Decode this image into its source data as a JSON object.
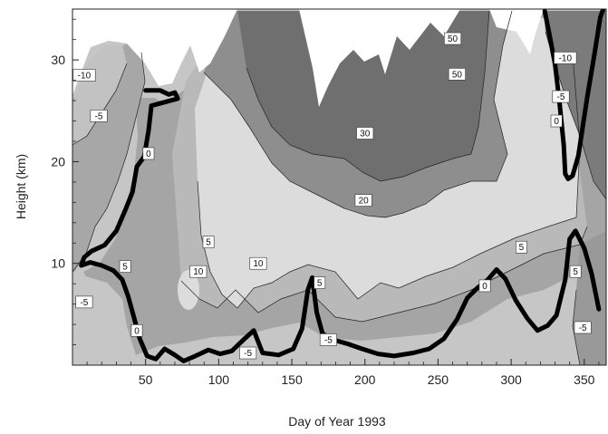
{
  "chart_data": {
    "type": "contour",
    "title": "",
    "xlabel": "Day of Year 1993",
    "ylabel": "Height (km)",
    "xlim": [
      0,
      365
    ],
    "ylim": [
      0,
      35
    ],
    "xticks": [
      50,
      100,
      150,
      200,
      250,
      300,
      350
    ],
    "yticks": [
      10,
      20,
      30
    ],
    "levels": [
      -10,
      -5,
      0,
      5,
      10,
      20,
      30,
      50
    ],
    "fill_colors": {
      "below_-10": "#c2c2c2",
      "-10_to_-5": "#a7a7a7",
      "-5_to_0": "#c6c6c6",
      "0_to_5": "#a5a5a5",
      "5_to_10": "#b9b9b9",
      "10_to_20": "#dcdcdc",
      "20_to_30": "#8e8e8e",
      "above_30": "#6f6f6f"
    },
    "contour_labels": [
      {
        "text": "-10",
        "day": 8,
        "km": 28.5
      },
      {
        "text": "-5",
        "day": 18,
        "km": 24.5
      },
      {
        "text": "0",
        "day": 52,
        "km": 20.8
      },
      {
        "text": "-5",
        "day": 8,
        "km": 6.2
      },
      {
        "text": "5",
        "day": 36,
        "km": 9.7
      },
      {
        "text": "0",
        "day": 44,
        "km": 3.4
      },
      {
        "text": "5",
        "day": 93,
        "km": 12.1
      },
      {
        "text": "10",
        "day": 86,
        "km": 9.2
      },
      {
        "text": "10",
        "day": 127,
        "km": 10.0
      },
      {
        "text": "-5",
        "day": 120,
        "km": 1.2
      },
      {
        "text": "5",
        "day": 169,
        "km": 8.1
      },
      {
        "text": "-5",
        "day": 175,
        "km": 2.5
      },
      {
        "text": "30",
        "day": 200,
        "km": 22.8
      },
      {
        "text": "20",
        "day": 199,
        "km": 16.2
      },
      {
        "text": "50",
        "day": 260,
        "km": 32.1
      },
      {
        "text": "50",
        "day": 263,
        "km": 28.6
      },
      {
        "text": "0",
        "day": 282,
        "km": 7.8
      },
      {
        "text": "5",
        "day": 307,
        "km": 11.6
      },
      {
        "text": "-10",
        "day": 337,
        "km": 30.2
      },
      {
        "text": "-5",
        "day": 334,
        "km": 26.4
      },
      {
        "text": "0",
        "day": 331,
        "km": 24.0
      },
      {
        "text": "5",
        "day": 344,
        "km": 9.2
      },
      {
        "text": "-5",
        "day": 349,
        "km": 3.7
      }
    ],
    "zero_contour": [
      [
        50,
        27
      ],
      [
        60,
        27
      ],
      [
        66,
        26.6
      ],
      [
        70,
        26.8
      ],
      [
        72,
        26.2
      ],
      [
        54,
        25.5
      ],
      [
        52,
        23
      ],
      [
        49,
        20.5
      ],
      [
        44,
        19.5
      ],
      [
        41,
        17
      ],
      [
        36,
        15.2
      ],
      [
        30,
        13.2
      ],
      [
        22,
        11.8
      ],
      [
        13,
        11.2
      ],
      [
        8,
        10.6
      ],
      [
        6,
        9.8
      ],
      [
        12,
        10.1
      ],
      [
        20,
        9.8
      ],
      [
        28,
        9.3
      ],
      [
        34,
        8.4
      ],
      [
        38,
        6.8
      ],
      [
        42,
        4.7
      ],
      [
        46,
        2.6
      ],
      [
        51,
        0.9
      ],
      [
        57,
        0.6
      ],
      [
        63,
        1.6
      ],
      [
        70,
        1.0
      ],
      [
        76,
        0.4
      ],
      [
        84,
        0.9
      ],
      [
        93,
        1.5
      ],
      [
        101,
        1.1
      ],
      [
        109,
        1.4
      ],
      [
        117,
        2.5
      ],
      [
        124,
        3.4
      ],
      [
        130,
        1.2
      ],
      [
        141,
        1.0
      ],
      [
        151,
        1.6
      ],
      [
        157,
        3.6
      ],
      [
        161,
        7.4
      ],
      [
        164,
        8.6
      ],
      [
        167,
        5.2
      ],
      [
        171,
        3.1
      ],
      [
        178,
        2.5
      ],
      [
        188,
        2.1
      ],
      [
        198,
        1.6
      ],
      [
        209,
        1.1
      ],
      [
        220,
        0.9
      ],
      [
        233,
        1.2
      ],
      [
        244,
        1.6
      ],
      [
        254,
        2.6
      ],
      [
        263,
        4.5
      ],
      [
        270,
        6.6
      ],
      [
        277,
        7.6
      ],
      [
        284,
        8.4
      ],
      [
        290,
        9.4
      ],
      [
        296,
        8.5
      ],
      [
        303,
        6.4
      ],
      [
        311,
        4.6
      ],
      [
        318,
        3.4
      ],
      [
        325,
        3.9
      ],
      [
        331,
        4.9
      ],
      [
        337,
        8.4
      ],
      [
        340,
        12.4
      ],
      [
        344,
        13.2
      ],
      [
        350,
        11.5
      ],
      [
        355,
        9.0
      ],
      [
        360,
        5.5
      ]
    ],
    "zero_contour_upper": [
      [
        323,
        34.8
      ],
      [
        326,
        32.6
      ],
      [
        330,
        29.6
      ],
      [
        333,
        25.9
      ],
      [
        336,
        21.6
      ],
      [
        337,
        18.8
      ],
      [
        339,
        18.3
      ],
      [
        342,
        18.6
      ],
      [
        346,
        20.6
      ],
      [
        352,
        26.3
      ],
      [
        357,
        30.6
      ],
      [
        361,
        34.2
      ],
      [
        363,
        35
      ]
    ]
  }
}
